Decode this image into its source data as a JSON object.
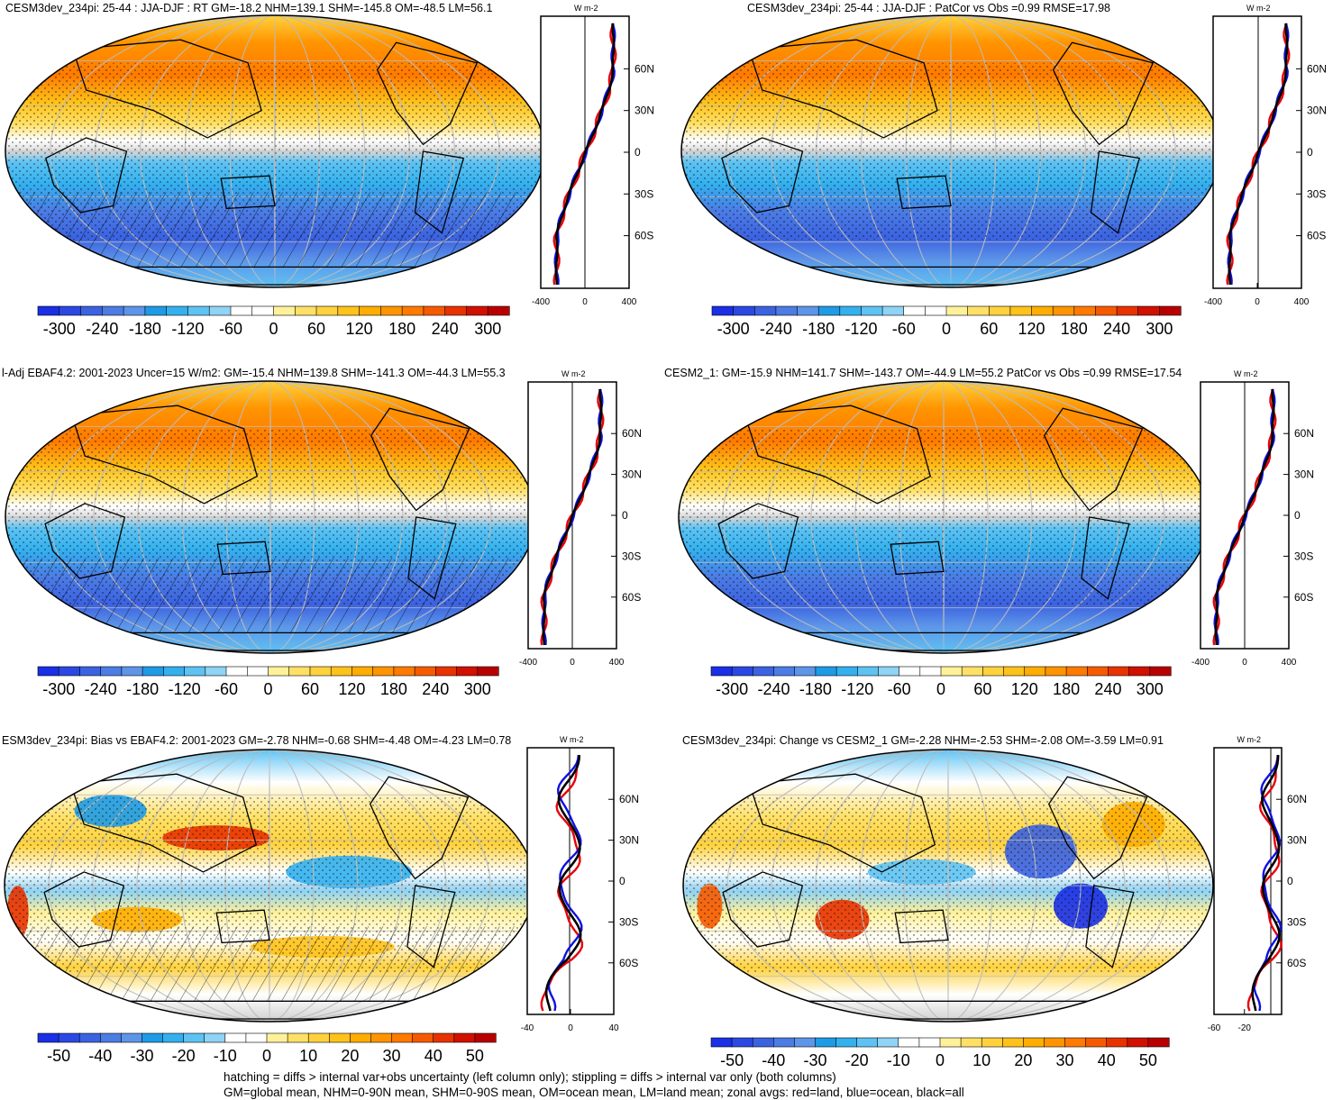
{
  "panels": [
    {
      "id": "model",
      "title": "CESM3dev_234pi: 25-44 : JJA-DJF : RT GM=-18.2 NHM=139.1 SHM=-145.8 OM=-48.5 LM=56.1",
      "palette": "full",
      "hatching": true,
      "stippling": true,
      "colorbar": {
        "labels": [
          "-300",
          "-240",
          "-180",
          "-120",
          "-60",
          "0",
          "60",
          "120",
          "180",
          "240",
          "300"
        ]
      },
      "zonal": {
        "xticks": [
          "-400",
          "0",
          "400"
        ],
        "ylabels": [
          "60N",
          "30N",
          "0",
          "30S",
          "60S"
        ],
        "units": "W m-2",
        "style": "mean"
      }
    },
    {
      "id": "model-vs-obs",
      "title": "CESM3dev_234pi: 25-44 : JJA-DJF : PatCor vs Obs =0.99 RMSE=17.98",
      "palette": "full",
      "hatching": false,
      "stippling": true,
      "colorbar": {
        "labels": [
          "-300",
          "-240",
          "-180",
          "-120",
          "-60",
          "0",
          "60",
          "120",
          "180",
          "240",
          "300"
        ]
      },
      "zonal": {
        "xticks": [
          "-400",
          "0",
          "400"
        ],
        "ylabels": [
          "60N",
          "30N",
          "0",
          "30S",
          "60S"
        ],
        "units": "W m-2",
        "style": "mean"
      }
    },
    {
      "id": "obs",
      "title": "l-Adj EBAF4.2: 2001-2023 Uncer=15 W/m2: GM=-15.4 NHM=139.8 SHM=-141.3 OM=-44.3 LM=55.3",
      "palette": "full",
      "hatching": true,
      "stippling": true,
      "colorbar": {
        "labels": [
          "-300",
          "-240",
          "-180",
          "-120",
          "-60",
          "0",
          "60",
          "120",
          "180",
          "240",
          "300"
        ]
      },
      "zonal": {
        "xticks": [
          "-400",
          "0",
          "400"
        ],
        "ylabels": [
          "60N",
          "30N",
          "0",
          "30S",
          "60S"
        ],
        "units": "W m-2",
        "style": "mean"
      }
    },
    {
      "id": "cesm2",
      "title": "CESM2_1: GM=-15.9 NHM=141.7 SHM=-143.7 OM=-44.9 LM=55.2 PatCor vs Obs =0.99 RMSE=17.54",
      "palette": "full",
      "hatching": false,
      "stippling": true,
      "colorbar": {
        "labels": [
          "-300",
          "-240",
          "-180",
          "-120",
          "-60",
          "0",
          "60",
          "120",
          "180",
          "240",
          "300"
        ]
      },
      "zonal": {
        "xticks": [
          "-400",
          "0",
          "400"
        ],
        "ylabels": [
          "60N",
          "30N",
          "0",
          "30S",
          "60S"
        ],
        "units": "W m-2",
        "style": "mean"
      }
    },
    {
      "id": "bias",
      "title": "ESM3dev_234pi: Bias vs EBAF4.2: 2001-2023 GM=-2.78 NHM=-0.68 SHM=-4.48 OM=-4.23 LM=0.78",
      "palette": "diff",
      "hatching": true,
      "stippling": true,
      "colorbar": {
        "labels": [
          "-50",
          "-40",
          "-30",
          "-20",
          "-10",
          "0",
          "10",
          "20",
          "30",
          "40",
          "50"
        ]
      },
      "zonal": {
        "xticks": [
          "-40",
          "0",
          "40"
        ],
        "ylabels": [
          "60N",
          "30N",
          "0",
          "30S",
          "60S"
        ],
        "units": "W m-2",
        "style": "bias"
      }
    },
    {
      "id": "change",
      "title": "CESM3dev_234pi: Change vs CESM2_1 GM=-2.28 NHM=-2.53 SHM=-2.08 OM=-3.59 LM=0.91",
      "palette": "diff",
      "hatching": false,
      "stippling": true,
      "colorbar": {
        "labels": [
          "-50",
          "-40",
          "-30",
          "-20",
          "-10",
          "0",
          "10",
          "20",
          "30",
          "40",
          "50"
        ]
      },
      "zonal": {
        "xticks": [
          "-60",
          "-20"
        ],
        "ylabels": [
          "60N",
          "30N",
          "0",
          "30S",
          "60S"
        ],
        "units": "W m-2",
        "style": "change"
      }
    }
  ],
  "colors": {
    "full": [
      "#1a2fe6",
      "#2b48e3",
      "#3b62e0",
      "#4c7ce4",
      "#5d95e8",
      "#1e9be6",
      "#33b0ee",
      "#5ec3f3",
      "#8fd3f5",
      "#ffffff",
      "#ffffff",
      "#fff19a",
      "#ffe066",
      "#ffd23d",
      "#ffc21a",
      "#ffad00",
      "#ff9400",
      "#ff7a00",
      "#f65a00",
      "#e83200",
      "#d11000",
      "#b80000"
    ],
    "diff": [
      "#1a2fe6",
      "#2b48e3",
      "#3b62e0",
      "#4c7ce4",
      "#5d95e8",
      "#1e9be6",
      "#33b0ee",
      "#5ec3f3",
      "#8fd3f5",
      "#ffffff",
      "#ffffff",
      "#fff19a",
      "#ffe066",
      "#ffd23d",
      "#ffc21a",
      "#ffad00",
      "#ff9400",
      "#ff7a00",
      "#f65a00",
      "#e83200",
      "#d11000",
      "#b80000"
    ],
    "land_line": "#000000",
    "zonal_land": "#e8000b",
    "zonal_ocean": "#1010e0",
    "zonal_all": "#000000"
  },
  "footer": {
    "line1": "hatching = diffs > internal var+obs uncertainty (left column only); stippling = diffs > internal var only (both columns)",
    "line2": "GM=global mean, NHM=0-90N mean, SHM=0-90S mean, OM=ocean mean, LM=land mean; zonal avgs: red=land, blue=ocean, black=all"
  }
}
